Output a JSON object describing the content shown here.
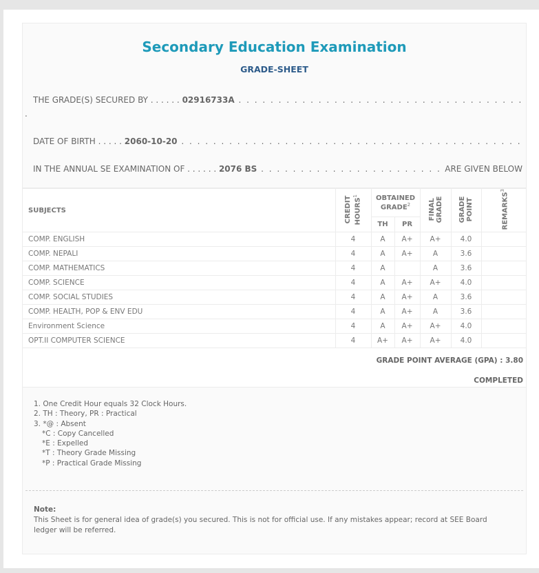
{
  "header": {
    "title": "Secondary Education Examination",
    "subtitle": "GRADE-SHEET"
  },
  "info": {
    "secured_by_label": "THE GRADE(S) SECURED BY",
    "secured_by_value": "02916733A",
    "dob_label": "DATE OF BIRTH",
    "dob_value": "2060-10-20",
    "exam_label": "IN THE ANNUAL SE EXAMINATION OF",
    "exam_value": "2076 BS",
    "exam_suffix": "ARE GIVEN BELOW"
  },
  "table": {
    "headers": {
      "subjects": "SUBJECTS",
      "credit": "CREDIT HOURS",
      "credit_sup": "1",
      "obtained": "OBTAINED GRADE",
      "obtained_sup": "2",
      "th": "TH",
      "pr": "PR",
      "final": "FINAL GRADE",
      "gp": "GRADE POINT",
      "remarks": "REMARKS",
      "remarks_sup": "3"
    },
    "rows": [
      {
        "subject": "COMP. ENGLISH",
        "credit": "4",
        "th": "A",
        "pr": "A+",
        "final": "A+",
        "gp": "4.0",
        "remarks": ""
      },
      {
        "subject": "COMP. NEPALI",
        "credit": "4",
        "th": "A",
        "pr": "A+",
        "final": "A",
        "gp": "3.6",
        "remarks": ""
      },
      {
        "subject": "COMP. MATHEMATICS",
        "credit": "4",
        "th": "A",
        "pr": "",
        "final": "A",
        "gp": "3.6",
        "remarks": ""
      },
      {
        "subject": "COMP. SCIENCE",
        "credit": "4",
        "th": "A",
        "pr": "A+",
        "final": "A+",
        "gp": "4.0",
        "remarks": ""
      },
      {
        "subject": "COMP. SOCIAL STUDIES",
        "credit": "4",
        "th": "A",
        "pr": "A+",
        "final": "A",
        "gp": "3.6",
        "remarks": ""
      },
      {
        "subject": "COMP. HEALTH, POP & ENV EDU",
        "credit": "4",
        "th": "A",
        "pr": "A+",
        "final": "A",
        "gp": "3.6",
        "remarks": ""
      },
      {
        "subject": "Environment Science",
        "credit": "4",
        "th": "A",
        "pr": "A+",
        "final": "A+",
        "gp": "4.0",
        "remarks": ""
      },
      {
        "subject": "OPT.II COMPUTER SCIENCE",
        "credit": "4",
        "th": "A+",
        "pr": "A+",
        "final": "A+",
        "gp": "4.0",
        "remarks": ""
      }
    ]
  },
  "summary": {
    "gpa": "GRADE POINT AVERAGE (GPA) : 3.80",
    "status": "COMPLETED"
  },
  "footnotes": [
    "1. One Credit Hour equals 32 Clock Hours.",
    "2. TH : Theory, PR : Practical",
    "3. *@ : Absent",
    "*C : Copy Cancelled",
    "*E : Expelled",
    "*T : Theory Grade Missing",
    "*P : Practical Grade Missing"
  ],
  "note": {
    "label": "Note:",
    "text": "This Sheet is for general idea of grade(s) you secured. This is not for official use. If any mistakes appear; record at SEE Board ledger will be referred."
  }
}
